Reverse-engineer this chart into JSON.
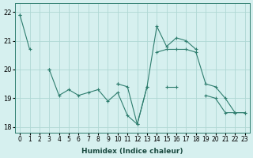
{
  "xlabel": "Humidex (Indice chaleur)",
  "x": [
    0,
    1,
    2,
    3,
    4,
    5,
    6,
    7,
    8,
    9,
    10,
    11,
    12,
    13,
    14,
    15,
    16,
    17,
    18,
    19,
    20,
    21,
    22,
    23
  ],
  "line1": [
    21.9,
    20.7,
    null,
    20.0,
    19.1,
    19.3,
    19.1,
    19.2,
    19.3,
    18.9,
    19.2,
    18.4,
    18.1,
    19.4,
    null,
    19.4,
    19.4,
    null,
    null,
    19.1,
    19.0,
    18.5,
    18.5,
    18.5
  ],
  "line2": [
    21.9,
    null,
    null,
    20.0,
    null,
    null,
    null,
    null,
    null,
    null,
    19.5,
    19.4,
    18.1,
    19.4,
    21.5,
    20.8,
    21.1,
    21.0,
    20.7,
    null,
    null,
    null,
    null,
    null
  ],
  "line3": [
    null,
    null,
    null,
    20.0,
    null,
    null,
    null,
    null,
    null,
    null,
    19.5,
    null,
    null,
    null,
    20.6,
    20.7,
    20.7,
    20.7,
    20.6,
    19.5,
    19.4,
    19.0,
    18.5,
    18.5
  ],
  "bg_color": "#d6f0ef",
  "line_color": "#2e7d6e",
  "grid_color": "#afd8d4",
  "ylim": [
    17.8,
    22.3
  ],
  "yticks": [
    18,
    19,
    20,
    21,
    22
  ]
}
